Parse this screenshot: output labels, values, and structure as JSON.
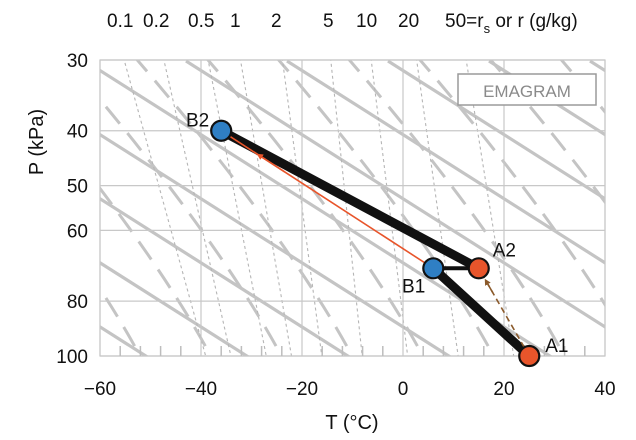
{
  "chart_data": {
    "type": "emagram",
    "legend_label": "EMAGRAM",
    "xlabel": "T (°C)",
    "ylabel": "P (kPa)",
    "xlim": [
      -60,
      40
    ],
    "ylim": [
      100,
      30
    ],
    "y_log_scale": true,
    "x_ticks": [
      -60,
      -40,
      -20,
      0,
      20,
      40
    ],
    "x_tick_labels": [
      "−60",
      "−40",
      "−20",
      "0",
      "20",
      "40"
    ],
    "y_ticks": [
      30,
      40,
      50,
      60,
      80,
      100
    ],
    "y_tick_labels": [
      "30",
      "40",
      "50",
      "60",
      "80",
      "100"
    ],
    "mixing_ratio_label": "50=r",
    "mixing_ratio_label_sub": "s",
    "mixing_ratio_label_suffix": " or r (g/kg)",
    "mixing_ratios": [
      "0.1",
      "0.2",
      "0.5",
      "1",
      "2",
      "5",
      "10",
      "20"
    ],
    "points": [
      {
        "name": "A1",
        "T": 25,
        "P": 100,
        "color": "#e8552b"
      },
      {
        "name": "A2",
        "T": 15,
        "P": 70,
        "color": "#e8552b"
      },
      {
        "name": "B1",
        "T": 6,
        "P": 70,
        "color": "#2f7fc4"
      },
      {
        "name": "B2",
        "T": -36,
        "P": 40,
        "color": "#2f7fc4"
      }
    ],
    "segments": [
      {
        "from": "A1",
        "to": "B1",
        "style": "thick-black"
      },
      {
        "from": "B1",
        "to": "A2",
        "style": "thin-black"
      },
      {
        "from": "A2",
        "to": "B2",
        "style": "thick-black"
      },
      {
        "from": "B1",
        "to": "B2",
        "style": "thin-orange-arrow",
        "color": "#e8552b"
      },
      {
        "from": "A1",
        "to": "A2",
        "style": "dashed-brown-arrow",
        "color": "#8b5a2b"
      }
    ],
    "colors": {
      "background_lines": "#c4c4c4",
      "grid": "#c8c8c8",
      "frame": "#c8c8c8"
    }
  }
}
